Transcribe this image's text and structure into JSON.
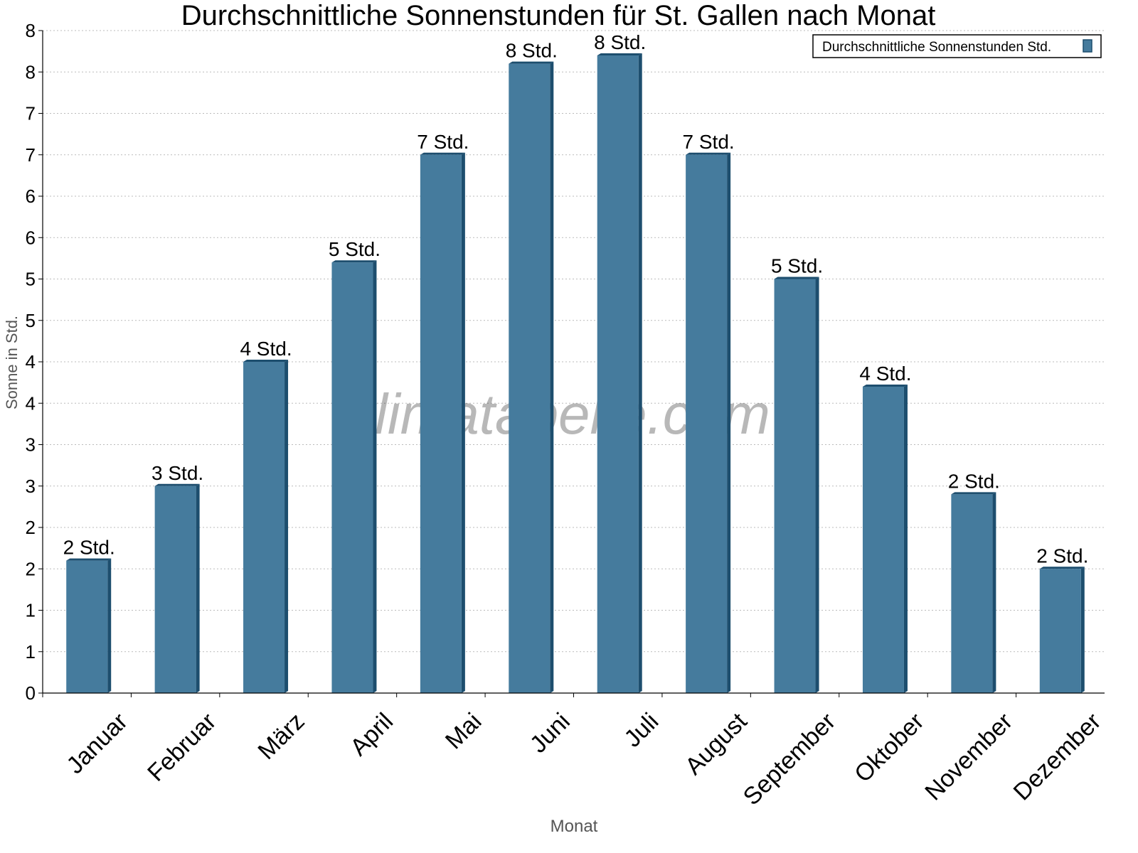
{
  "chart_data": {
    "type": "bar",
    "title": "Durchschnittliche Sonnenstunden für St. Gallen nach Monat",
    "xlabel": "Monat",
    "ylabel": "Sonne in Std.",
    "ylim": [
      0,
      8
    ],
    "yticks": [
      0,
      0.5,
      1,
      1.5,
      2,
      2.5,
      3,
      3.5,
      4,
      4.5,
      5,
      5.5,
      6,
      6.5,
      7,
      7.5,
      8
    ],
    "ytick_labels": [
      "0",
      "1",
      "1",
      "2",
      "2",
      "3",
      "3",
      "4",
      "4",
      "5",
      "5",
      "6",
      "6",
      "7",
      "7",
      "8",
      "8"
    ],
    "categories": [
      "Januar",
      "Februar",
      "März",
      "April",
      "Mai",
      "Juni",
      "Juli",
      "August",
      "September",
      "Oktober",
      "November",
      "Dezember"
    ],
    "series": [
      {
        "name": "Durchschnittliche Sonnenstunden Std.",
        "values": [
          1.6,
          2.5,
          4.0,
          5.2,
          6.5,
          7.6,
          7.7,
          6.5,
          5.0,
          3.7,
          2.4,
          1.5
        ],
        "data_labels": [
          "2 Std.",
          "3 Std.",
          "4 Std.",
          "5 Std.",
          "7 Std.",
          "8 Std.",
          "8 Std.",
          "7 Std.",
          "5 Std.",
          "4 Std.",
          "2 Std.",
          "2 Std."
        ]
      }
    ],
    "grid": true,
    "legend": "top-right",
    "bar_color": "#457b9d",
    "bar_edge_color": "#1d4e6e",
    "watermark": "klimatabelle.com"
  }
}
